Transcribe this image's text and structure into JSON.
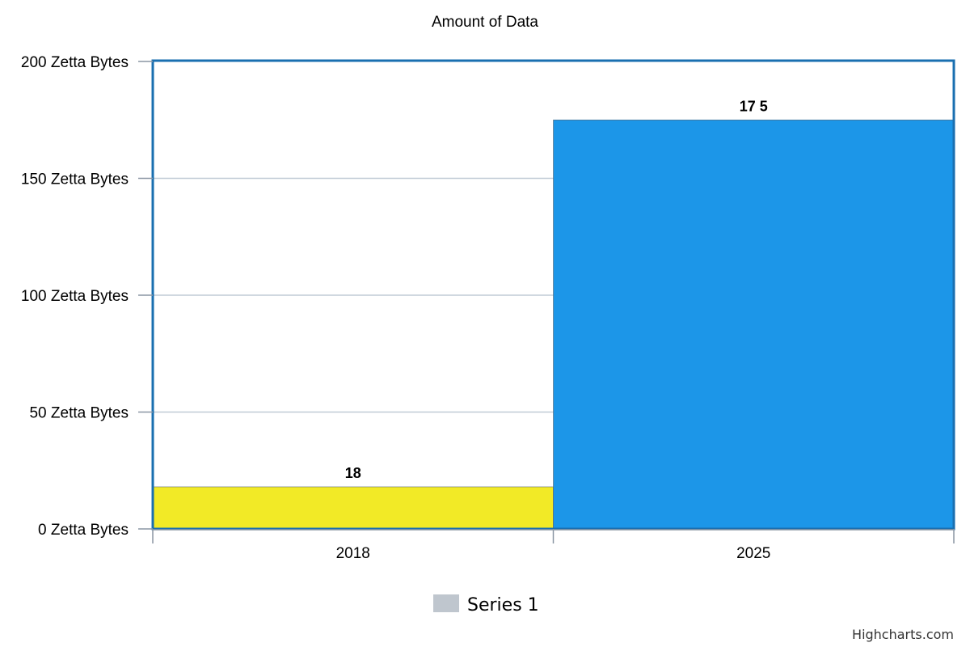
{
  "chart_data": {
    "type": "bar",
    "title": "Amount of Data",
    "categories": [
      "2018",
      "2025"
    ],
    "series": [
      {
        "name": "Series 1",
        "values": [
          18,
          175
        ]
      }
    ],
    "bar_colors": [
      "#f2ea26",
      "#1c96e8"
    ],
    "data_labels": [
      "18",
      "17 5"
    ],
    "xlabel": "",
    "ylabel": "",
    "ylim": [
      0,
      200
    ],
    "y_ticks": [
      0,
      50,
      100,
      150,
      200
    ],
    "y_tick_labels": [
      "0 Zetta Bytes",
      "50 Zetta Bytes",
      "100 Zetta Bytes",
      "150 Zetta Bytes",
      "200 Zetta Bytes"
    ],
    "grid": true,
    "legend": {
      "position": "bottom-center",
      "label": "Series 1",
      "swatch_color": "#bfc6ce"
    },
    "plot_border_color": "#1a6fb0",
    "grid_color": "#c0cbd6"
  },
  "credits": "Highcharts.com"
}
